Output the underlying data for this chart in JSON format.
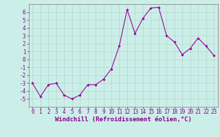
{
  "x": [
    0,
    1,
    2,
    3,
    4,
    5,
    6,
    7,
    8,
    9,
    10,
    11,
    12,
    13,
    14,
    15,
    16,
    17,
    18,
    19,
    20,
    21,
    22,
    23
  ],
  "y": [
    -3.0,
    -4.7,
    -3.2,
    -3.0,
    -4.5,
    -5.0,
    -4.5,
    -3.2,
    -3.2,
    -2.5,
    -1.2,
    1.7,
    6.3,
    3.3,
    5.2,
    6.5,
    6.6,
    3.0,
    2.2,
    0.6,
    1.4,
    2.7,
    1.7,
    0.5
  ],
  "line_color": "#990099",
  "marker": "D",
  "marker_size": 1.8,
  "linewidth": 0.8,
  "xlabel": "Windchill (Refroidissement éolien,°C)",
  "xlabel_fontsize": 6.5,
  "xlim": [
    -0.5,
    23.5
  ],
  "ylim": [
    -6,
    7
  ],
  "yticks": [
    -5,
    -4,
    -3,
    -2,
    -1,
    0,
    1,
    2,
    3,
    4,
    5,
    6
  ],
  "xticks": [
    0,
    1,
    2,
    3,
    4,
    5,
    6,
    7,
    8,
    9,
    10,
    11,
    12,
    13,
    14,
    15,
    16,
    17,
    18,
    19,
    20,
    21,
    22,
    23
  ],
  "grid_color": "#b0d8cc",
  "bg_color": "#cceee8",
  "tick_fontsize": 5.5,
  "tick_color": "#880088",
  "spine_color": "#888888"
}
